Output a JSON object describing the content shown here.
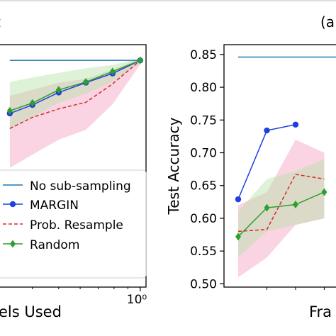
{
  "chart_data": [
    {
      "type": "line",
      "panel_label": "t",
      "xlabel": "els Used",
      "ylabel": "",
      "x_scale": "log",
      "x_tick_labels": [
        "10⁰"
      ],
      "x_tick_values": [
        1
      ],
      "xlim": [
        0.3,
        1.05
      ],
      "ylim": [
        0.5,
        0.87
      ],
      "grid": false,
      "legend_position": "lower-left",
      "x": [
        0.33,
        0.4,
        0.5,
        0.63,
        0.79,
        1.0
      ],
      "series": [
        {
          "name": "No sub-sampling",
          "color": "#1f77b4",
          "style": "solid",
          "marker": "none",
          "values": [
            0.846,
            0.846,
            0.846,
            0.846,
            0.846,
            0.846
          ]
        },
        {
          "name": "MARGIN",
          "color": "#1f3fe0",
          "style": "solid",
          "marker": "circle",
          "values": [
            0.765,
            0.778,
            0.797,
            0.812,
            0.826,
            0.846
          ]
        },
        {
          "name": "Prob. Resample",
          "color": "#d62728",
          "style": "dashed",
          "marker": "none",
          "values": [
            0.742,
            0.759,
            0.772,
            0.782,
            0.81,
            0.846
          ],
          "band_low": [
            0.682,
            0.702,
            0.725,
            0.74,
            0.779,
            0.84
          ],
          "band_high": [
            0.792,
            0.801,
            0.812,
            0.818,
            0.832,
            0.849
          ]
        },
        {
          "name": "Random",
          "color": "#2ca02c",
          "style": "solid",
          "marker": "diamond",
          "values": [
            0.769,
            0.781,
            0.801,
            0.813,
            0.829,
            0.846
          ],
          "band_low": [
            0.741,
            0.759,
            0.781,
            0.795,
            0.813,
            0.842
          ],
          "band_high": [
            0.813,
            0.82,
            0.827,
            0.834,
            0.839,
            0.849
          ]
        }
      ]
    },
    {
      "type": "line",
      "panel_label": "(a",
      "xlabel": "Fra",
      "ylabel": "Test Accuracy",
      "y_ticks": [
        "0.50",
        "0.55",
        "0.60",
        "0.65",
        "0.70",
        "0.75",
        "0.80",
        "0.85"
      ],
      "y_tick_values": [
        0.5,
        0.55,
        0.6,
        0.65,
        0.7,
        0.75,
        0.8,
        0.85
      ],
      "ylim": [
        0.495,
        0.865
      ],
      "xlim": [
        0,
        4.2
      ],
      "grid": false,
      "x": [
        0,
        1,
        2,
        3,
        4
      ],
      "series": [
        {
          "name": "No sub-sampling",
          "color": "#1f77b4",
          "style": "solid",
          "marker": "none",
          "values": [
            0.846,
            0.846,
            0.846,
            0.846,
            0.846
          ]
        },
        {
          "name": "MARGIN",
          "color": "#1f3fe0",
          "style": "solid",
          "marker": "circle",
          "values": [
            0.629,
            0.734,
            0.743,
            null,
            null
          ]
        },
        {
          "name": "Prob. Resample",
          "color": "#d62728",
          "style": "dashed",
          "marker": "none",
          "values": [
            0.58,
            0.583,
            0.667,
            0.66,
            null
          ],
          "band_low": [
            0.51,
            0.54,
            0.59,
            0.6,
            null
          ],
          "band_high": [
            0.62,
            0.64,
            0.72,
            0.7,
            null
          ]
        },
        {
          "name": "Random",
          "color": "#2ca02c",
          "style": "solid",
          "marker": "diamond",
          "values": [
            0.572,
            0.616,
            0.621,
            0.64,
            null
          ],
          "band_low": [
            0.54,
            0.58,
            0.59,
            0.6,
            null
          ],
          "band_high": [
            0.61,
            0.66,
            0.672,
            0.69,
            null
          ]
        }
      ]
    }
  ]
}
